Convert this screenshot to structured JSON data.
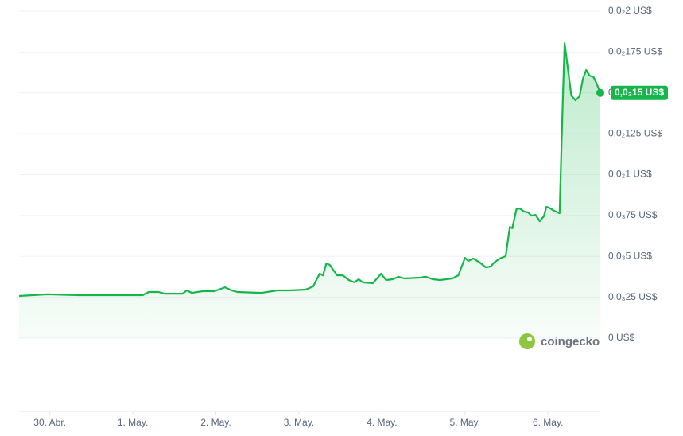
{
  "chart_data": {
    "type": "line",
    "color": "#16b64a",
    "grid": true,
    "watermark": "coingecko",
    "current_price_label": "0,0₂15 US$",
    "x": [
      -0.37,
      -0.03,
      0.35,
      0.74,
      1.12,
      1.19,
      1.31,
      1.38,
      1.6,
      1.65,
      1.71,
      1.84,
      1.98,
      2.11,
      2.19,
      2.26,
      2.55,
      2.74,
      2.89,
      3.08,
      3.17,
      3.25,
      3.29,
      3.33,
      3.37,
      3.46,
      3.53,
      3.6,
      3.67,
      3.72,
      3.77,
      3.89,
      3.99,
      4.05,
      4.13,
      4.2,
      4.27,
      4.46,
      4.53,
      4.61,
      4.7,
      4.85,
      4.92,
      5.0,
      5.04,
      5.1,
      5.18,
      5.25,
      5.31,
      5.35,
      5.42,
      5.49,
      5.54,
      5.57,
      5.62,
      5.66,
      5.71,
      5.76,
      5.8,
      5.85,
      5.9,
      5.95,
      5.98,
      6.01,
      6.09,
      6.14,
      6.18,
      6.2,
      6.28,
      6.33,
      6.38,
      6.42,
      6.46,
      6.5,
      6.55,
      6.59,
      6.63
    ],
    "values": [
      0.000258,
      0.000268,
      0.000263,
      0.000263,
      0.000263,
      0.000282,
      0.000282,
      0.000272,
      0.000272,
      0.000292,
      0.000277,
      0.000287,
      0.000287,
      0.000311,
      0.000292,
      0.000282,
      0.000277,
      0.000292,
      0.000292,
      0.000297,
      0.000316,
      0.000394,
      0.000384,
      0.000457,
      0.000448,
      0.000384,
      0.000384,
      0.000355,
      0.000341,
      0.00036,
      0.000341,
      0.000336,
      0.000394,
      0.000355,
      0.00036,
      0.000375,
      0.000365,
      0.00037,
      0.000375,
      0.00036,
      0.000355,
      0.000365,
      0.000384,
      0.000491,
      0.000472,
      0.000487,
      0.000462,
      0.000433,
      0.000438,
      0.000462,
      0.000487,
      0.000501,
      0.000681,
      0.000672,
      0.000788,
      0.000793,
      0.000774,
      0.000769,
      0.000749,
      0.000754,
      0.000715,
      0.000745,
      0.000803,
      0.000798,
      0.000774,
      0.000764,
      0.001484,
      0.001805,
      0.001484,
      0.001455,
      0.001479,
      0.001586,
      0.00164,
      0.001606,
      0.001596,
      0.001552,
      0.0015
    ],
    "xlim": [
      -0.37,
      6.63
    ],
    "xticks": [
      {
        "value": 0,
        "label": "30. Abr."
      },
      {
        "value": 1,
        "label": "1. May."
      },
      {
        "value": 2,
        "label": "2. May."
      },
      {
        "value": 3,
        "label": "3. May."
      },
      {
        "value": 4,
        "label": "4. May."
      },
      {
        "value": 5,
        "label": "5. May."
      },
      {
        "value": 6,
        "label": "6. May."
      }
    ],
    "ylim": [
      0,
      0.002
    ],
    "yticks": [
      {
        "value": 0,
        "label": "0 US$"
      },
      {
        "value": 0.00025,
        "label": "0,0₃25 US$"
      },
      {
        "value": 0.0005,
        "label": "0,0₃5 US$"
      },
      {
        "value": 0.00075,
        "label": "0,0₃75 US$"
      },
      {
        "value": 0.001,
        "label": "0,0₂1 US$"
      },
      {
        "value": 0.00125,
        "label": "0,0₂125 US$"
      },
      {
        "value": 0.0015,
        "label": "0,0₂15 US$"
      },
      {
        "value": 0.00175,
        "label": "0,0₂175 US$"
      },
      {
        "value": 0.002,
        "label": "0,0₂2 US$"
      }
    ]
  }
}
